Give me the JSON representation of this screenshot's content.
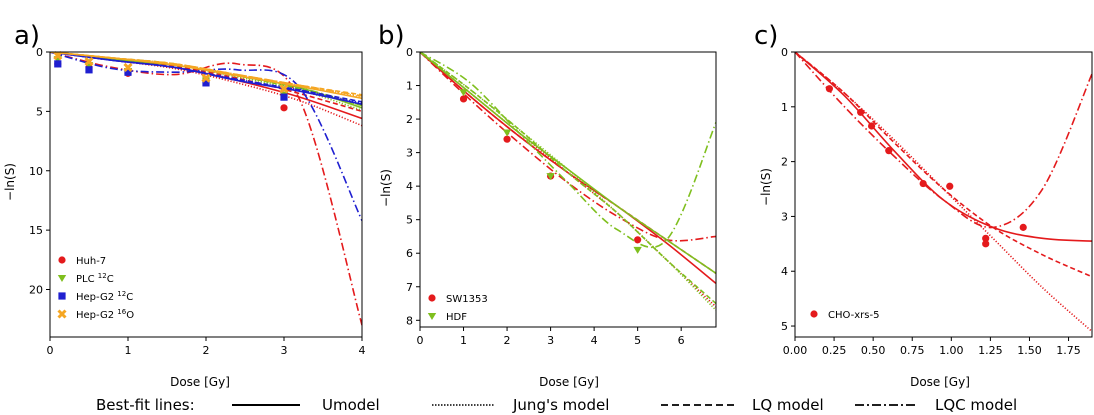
{
  "chart_data": [
    {
      "panel": "a)",
      "type": "scatter",
      "xlabel": "Dose [Gy]",
      "ylabel": "−ln(S)",
      "xlim": [
        0,
        4
      ],
      "ylim": [
        0,
        24
      ],
      "y_inverted": true,
      "xticks": [
        "0",
        "1",
        "2",
        "3",
        "4"
      ],
      "yticks": [
        "0",
        "5",
        "10",
        "15",
        "20"
      ],
      "legend_position": "lower-left",
      "series": [
        {
          "name": "Huh-7",
          "sub": "",
          "color": "#e41a1c",
          "marker": "circle",
          "x": [
            0.1,
            0.5,
            1,
            2,
            3
          ],
          "y": [
            1.0,
            1.3,
            1.8,
            2.4,
            4.7
          ],
          "fits": {
            "umodel": [
              0,
              0.6,
              1.3,
              2.4,
              3.8,
              5.6
            ],
            "jung": [
              0,
              0.7,
              1.4,
              2.6,
              4.1,
              6.2
            ],
            "lq": [
              0,
              0.6,
              1.2,
              2.2,
              3.5,
              5.0
            ],
            "lqc": [
              0,
              1.3,
              1.9,
              1.0,
              4.0,
              23.0
            ]
          }
        },
        {
          "name": "PLC ",
          "sub": "12C",
          "color": "#7fbf1e",
          "marker": "triangle",
          "x": [
            0.1,
            0.5,
            1,
            2,
            3
          ],
          "y": [
            0.6,
            1.1,
            1.6,
            2.4,
            3.6
          ],
          "fits": {
            "umodel": [
              0,
              0.6,
              1.1,
              2.0,
              3.0,
              4.7
            ],
            "jung": [
              0,
              0.6,
              1.1,
              2.1,
              3.2,
              4.9
            ],
            "lq": [
              0,
              0.5,
              1.0,
              2.0,
              3.1,
              4.5
            ],
            "lqc": [
              0,
              0.6,
              1.1,
              2.0,
              3.0,
              4.5
            ]
          }
        },
        {
          "name": "Hep-G2 ",
          "sub": "12C",
          "color": "#1f1fd0",
          "marker": "square",
          "x": [
            0.1,
            0.5,
            1,
            2,
            3
          ],
          "y": [
            1.0,
            1.5,
            1.7,
            2.6,
            3.8
          ],
          "fits": {
            "umodel": [
              0,
              0.7,
              1.3,
              2.4,
              3.3,
              4.4
            ],
            "jung": [
              0,
              0.7,
              1.3,
              2.3,
              3.2,
              4.3
            ],
            "lq": [
              0,
              0.7,
              1.3,
              2.3,
              3.2,
              4.2
            ],
            "lqc": [
              0,
              1.4,
              1.7,
              1.5,
              3.0,
              14.2
            ]
          }
        },
        {
          "name": "Hep-G2 ",
          "sub": "16O",
          "color": "#f5a623",
          "marker": "x",
          "x": [
            0.1,
            0.5,
            1,
            2,
            3
          ],
          "y": [
            0.3,
            0.8,
            1.3,
            2.2,
            3.1
          ],
          "fits": {
            "umodel": [
              0,
              0.5,
              1.1,
              2.0,
              2.9,
              3.9
            ],
            "jung": [
              0,
              0.5,
              1.0,
              2.0,
              2.8,
              3.8
            ],
            "lq": [
              0,
              0.5,
              1.0,
              1.9,
              2.8,
              3.6
            ],
            "lqc": [
              0,
              0.5,
              1.0,
              1.9,
              2.8,
              3.7
            ]
          }
        }
      ]
    },
    {
      "panel": "b)",
      "type": "scatter",
      "xlabel": "Dose [Gy]",
      "ylabel": "−ln(S)",
      "xlim": [
        0,
        6.8
      ],
      "ylim": [
        0,
        8.2
      ],
      "y_inverted": true,
      "xticks": [
        "0",
        "1",
        "2",
        "3",
        "4",
        "5",
        "6"
      ],
      "yticks": [
        "0",
        "1",
        "2",
        "3",
        "4",
        "5",
        "6",
        "7",
        "8"
      ],
      "legend_position": "lower-left",
      "series": [
        {
          "name": "SW1353",
          "sub": "",
          "color": "#e41a1c",
          "marker": "circle",
          "x": [
            1,
            2,
            3,
            5
          ],
          "y": [
            1.4,
            2.6,
            3.7,
            5.6
          ],
          "fits": {
            "umodel": [
              0,
              1.3,
              2.5,
              3.6,
              4.6,
              5.7,
              6.9
            ],
            "jung": [
              0,
              1.2,
              2.4,
              3.6,
              4.8,
              6.2,
              7.6
            ],
            "lq": [
              0,
              1.3,
              2.5,
              3.6,
              4.6,
              5.6,
              6.6
            ],
            "lqc": [
              0,
              1.4,
              2.7,
              3.9,
              4.9,
              5.6,
              5.5
            ]
          }
        },
        {
          "name": "HDF",
          "sub": "",
          "color": "#7fbf1e",
          "marker": "triangle",
          "x": [
            1,
            2,
            3,
            5
          ],
          "y": [
            1.2,
            2.4,
            3.7,
            5.9
          ],
          "fits": {
            "umodel": [
              0,
              1.2,
              2.4,
              3.5,
              4.6,
              5.6,
              6.6
            ],
            "jung": [
              0,
              1.1,
              2.3,
              3.5,
              4.8,
              6.2,
              7.7
            ],
            "lq": [
              0,
              1.1,
              2.3,
              3.6,
              4.8,
              6.2,
              7.5
            ],
            "lqc": [
              0,
              0.9,
              2.4,
              3.9,
              5.3,
              5.6,
              2.1
            ]
          }
        }
      ]
    },
    {
      "panel": "c)",
      "type": "scatter",
      "xlabel": "Dose [Gy]",
      "ylabel": "−ln(S)",
      "xlim": [
        0,
        1.9
      ],
      "ylim": [
        0,
        5.2
      ],
      "y_inverted": true,
      "xticks": [
        "0.00",
        "0.25",
        "0.50",
        "0.75",
        "1.00",
        "1.25",
        "1.50",
        "1.75"
      ],
      "yticks": [
        "0",
        "1",
        "2",
        "3",
        "4",
        "5"
      ],
      "legend_position": "lower-left",
      "series": [
        {
          "name": "CHO-xrs-5",
          "sub": "",
          "color": "#e41a1c",
          "marker": "circle",
          "x": [
            0.22,
            0.42,
            0.49,
            0.6,
            0.82,
            0.99,
            1.22,
            1.22,
            1.46
          ],
          "y": [
            0.67,
            1.1,
            1.35,
            1.8,
            2.4,
            2.45,
            3.4,
            3.5,
            3.2
          ],
          "fits": {
            "umodel": [
              0,
              0.8,
              1.8,
              2.7,
              3.2,
              3.4,
              3.45
            ],
            "jung": [
              0,
              0.75,
              1.6,
              2.5,
              3.4,
              4.3,
              5.1
            ],
            "lq": [
              0,
              0.75,
              1.65,
              2.5,
              3.2,
              3.7,
              4.1
            ],
            "lqc": [
              0,
              1.0,
              1.9,
              2.7,
              3.2,
              2.5,
              0.4
            ]
          }
        }
      ]
    }
  ],
  "legend": {
    "title": "Best-fit lines:",
    "items": [
      {
        "label": "Umodel",
        "style": "solid"
      },
      {
        "label": "Jung's model",
        "style": "dotted"
      },
      {
        "label": "LQ model",
        "style": "dashed"
      },
      {
        "label": "LQC model",
        "style": "dashdot"
      }
    ]
  }
}
